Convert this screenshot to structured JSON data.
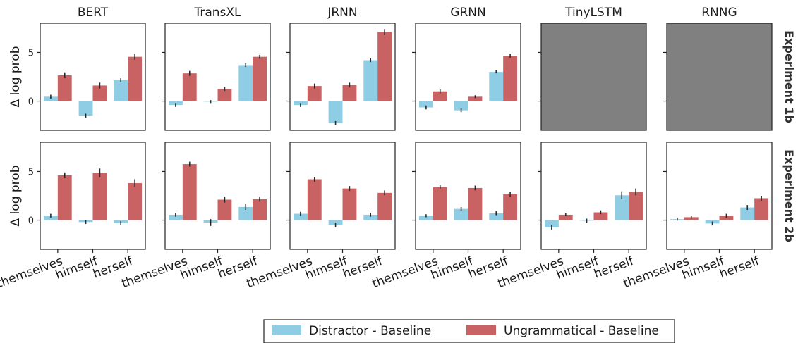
{
  "chart_data": {
    "type": "bar",
    "categories": [
      "themselves",
      "himself",
      "herself"
    ],
    "ylabel": "Δ log prob",
    "ylim": [
      -3.0,
      8.0
    ],
    "yticks": [
      0,
      5
    ],
    "colors": {
      "distractor": "#8ecde3",
      "ungrammatical": "#c96262",
      "missing": "#808080",
      "errorbar": "#2a2a2a"
    },
    "legend": {
      "placement": "bottom-center",
      "entries": [
        {
          "key": "distractor",
          "label": "Distractor - Baseline"
        },
        {
          "key": "ungrammatical",
          "label": "Ungrammatical - Baseline"
        }
      ]
    },
    "rows": [
      {
        "label": "Experiment 1b"
      },
      {
        "label": "Experiment 2b"
      }
    ],
    "models": [
      "BERT",
      "TransXL",
      "JRNN",
      "GRNN",
      "TinyLSTM",
      "RNNG"
    ],
    "panels": [
      {
        "model": "BERT",
        "row": 0,
        "missing": false,
        "distractor": [
          0.45,
          -1.5,
          2.15
        ],
        "ungrammatical": [
          2.65,
          1.6,
          4.55
        ],
        "distractor_err": [
          0.2,
          0.2,
          0.2
        ],
        "ungrammatical_err": [
          0.3,
          0.3,
          0.3
        ]
      },
      {
        "model": "TransXL",
        "row": 0,
        "missing": false,
        "distractor": [
          -0.4,
          -0.05,
          3.7
        ],
        "ungrammatical": [
          2.85,
          1.25,
          4.55
        ],
        "distractor_err": [
          0.2,
          0.15,
          0.2
        ],
        "ungrammatical_err": [
          0.25,
          0.2,
          0.2
        ]
      },
      {
        "model": "JRNN",
        "row": 0,
        "missing": false,
        "distractor": [
          -0.4,
          -2.25,
          4.2
        ],
        "ungrammatical": [
          1.55,
          1.65,
          7.1
        ],
        "distractor_err": [
          0.2,
          0.2,
          0.2
        ],
        "ungrammatical_err": [
          0.25,
          0.25,
          0.3
        ]
      },
      {
        "model": "GRNN",
        "row": 0,
        "missing": false,
        "distractor": [
          -0.65,
          -0.95,
          3.0
        ],
        "ungrammatical": [
          1.0,
          0.45,
          4.65
        ],
        "distractor_err": [
          0.2,
          0.2,
          0.15
        ],
        "ungrammatical_err": [
          0.2,
          0.15,
          0.2
        ]
      },
      {
        "model": "TinyLSTM",
        "row": 0,
        "missing": true
      },
      {
        "model": "RNNG",
        "row": 0,
        "missing": true
      },
      {
        "model": "BERT",
        "row": 1,
        "missing": false,
        "distractor": [
          0.45,
          -0.2,
          -0.3
        ],
        "ungrammatical": [
          4.6,
          4.85,
          3.8
        ],
        "distractor_err": [
          0.2,
          0.2,
          0.2
        ],
        "ungrammatical_err": [
          0.3,
          0.45,
          0.4
        ]
      },
      {
        "model": "TransXL",
        "row": 1,
        "missing": false,
        "distractor": [
          0.55,
          -0.25,
          1.35
        ],
        "ungrammatical": [
          5.75,
          2.1,
          2.15
        ],
        "distractor_err": [
          0.2,
          0.35,
          0.3
        ],
        "ungrammatical_err": [
          0.25,
          0.3,
          0.25
        ]
      },
      {
        "model": "JRNN",
        "row": 1,
        "missing": false,
        "distractor": [
          0.65,
          -0.5,
          0.55
        ],
        "ungrammatical": [
          4.2,
          3.25,
          2.8
        ],
        "distractor_err": [
          0.2,
          0.25,
          0.2
        ],
        "ungrammatical_err": [
          0.25,
          0.25,
          0.25
        ]
      },
      {
        "model": "GRNN",
        "row": 1,
        "missing": false,
        "distractor": [
          0.45,
          1.15,
          0.7
        ],
        "ungrammatical": [
          3.4,
          3.3,
          2.65
        ],
        "distractor_err": [
          0.15,
          0.2,
          0.2
        ],
        "ungrammatical_err": [
          0.2,
          0.25,
          0.25
        ]
      },
      {
        "model": "TinyLSTM",
        "row": 1,
        "missing": false,
        "distractor": [
          -0.75,
          -0.05,
          2.55
        ],
        "ungrammatical": [
          0.55,
          0.8,
          2.9
        ],
        "distractor_err": [
          0.25,
          0.2,
          0.4
        ],
        "ungrammatical_err": [
          0.15,
          0.2,
          0.35
        ]
      },
      {
        "model": "RNNG",
        "row": 1,
        "missing": false,
        "distractor": [
          0.1,
          -0.35,
          1.3
        ],
        "ungrammatical": [
          0.3,
          0.45,
          2.25
        ],
        "distractor_err": [
          0.15,
          0.2,
          0.25
        ],
        "ungrammatical_err": [
          0.15,
          0.2,
          0.25
        ]
      }
    ]
  }
}
